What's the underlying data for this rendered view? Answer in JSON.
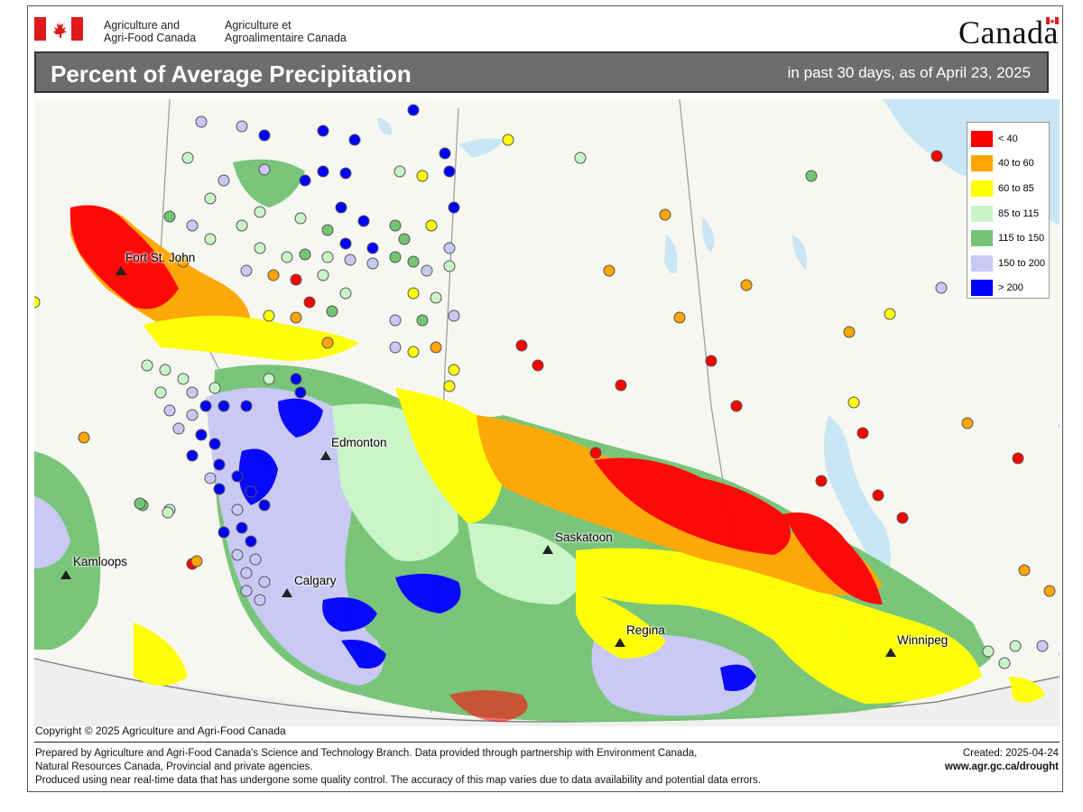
{
  "header": {
    "department_en_line1": "Agriculture and",
    "department_en_line2": "Agri-Food Canada",
    "department_fr_line1": "Agriculture et",
    "department_fr_line2": "Agroalimentaire Canada",
    "wordmark": "Canada"
  },
  "title": {
    "main": "Percent of Average Precipitation",
    "sub": "in past 30 days, as of April 23, 2025"
  },
  "legend": {
    "items": [
      {
        "label": "< 40",
        "color": "#ff0000"
      },
      {
        "label": "40 to 60",
        "color": "#ffa500"
      },
      {
        "label": "60 to 85",
        "color": "#ffff00"
      },
      {
        "label": "85 to 115",
        "color": "#c8f5c8"
      },
      {
        "label": "115 to 150",
        "color": "#74c476"
      },
      {
        "label": "150 to 200",
        "color": "#c8c8f5"
      },
      {
        "label": "> 200",
        "color": "#0000ff"
      }
    ]
  },
  "cities": [
    {
      "name": "Fort St. John"
    },
    {
      "name": "Edmonton"
    },
    {
      "name": "Saskatoon"
    },
    {
      "name": "Kamloops"
    },
    {
      "name": "Calgary"
    },
    {
      "name": "Regina"
    },
    {
      "name": "Winnipeg"
    }
  ],
  "colors": {
    "background_land": "#f7f7f2",
    "water": "#c9e6f5",
    "title_band": "#6d6d6d"
  },
  "copyright": "Copyright © 2025 Agriculture and Agri-Food Canada",
  "footer": {
    "line1": "Prepared by Agriculture and Agri-Food Canada's Science and Technology Branch. Data provided through partnership with Environment Canada,",
    "line2": "Natural Resources Canada, Provincial and private agencies.",
    "line3": "Produced using near real-time data that has undergone some quality control. The accuracy of this map varies due to data availability and potential data errors.",
    "created": "Created: 2025-04-24",
    "url": "www.agr.gc.ca/drought"
  }
}
